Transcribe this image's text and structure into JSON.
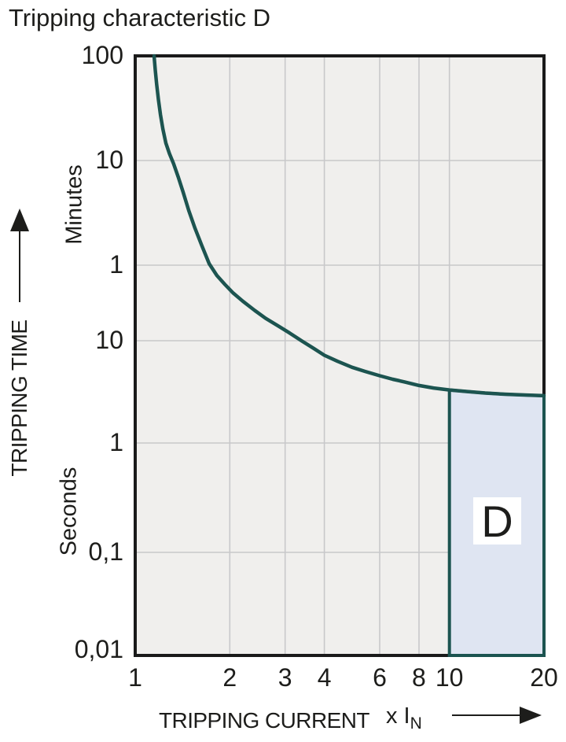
{
  "chart_data": {
    "type": "line",
    "title": "Tripping characteristic D",
    "x_axis": {
      "label": "TRIPPING CURRENT",
      "unit": "x I",
      "unit_sub": "N",
      "scale": "log",
      "range": [
        1,
        20
      ],
      "ticks": [
        1,
        2,
        3,
        4,
        6,
        8,
        10,
        20
      ],
      "tick_labels": [
        "1",
        "2",
        "3",
        "4",
        "6",
        "8",
        "10",
        "20"
      ]
    },
    "y_axis": {
      "label": "TRIPPING TIME",
      "upper_unit": "Minutes",
      "lower_unit": "Seconds",
      "scale": "log",
      "range_seconds": [
        0.01,
        6000
      ],
      "tick_labels": [
        {
          "text": "100",
          "unit": "minutes",
          "seconds": 6000
        },
        {
          "text": "10",
          "unit": "minutes",
          "seconds": 600
        },
        {
          "text": "1",
          "unit": "minutes",
          "seconds": 60
        },
        {
          "text": "10",
          "unit": "seconds",
          "seconds": 10
        },
        {
          "text": "1",
          "unit": "seconds",
          "seconds": 1
        },
        {
          "text": "0,1",
          "unit": "seconds",
          "seconds": 0.1
        },
        {
          "text": "0,01",
          "unit": "seconds",
          "seconds": 0.01
        }
      ]
    },
    "grid": {
      "x_lines_at": [
        2,
        3,
        4,
        6,
        8,
        10
      ],
      "y_lines_at_seconds": [
        600,
        60,
        10,
        1,
        0.1
      ]
    },
    "series": [
      {
        "name": "tripping-characteristic-D-curve",
        "color": "#1c5450",
        "points": [
          [
            1.148,
            6000
          ],
          [
            1.158,
            4400
          ],
          [
            1.17,
            3200
          ],
          [
            1.185,
            2300
          ],
          [
            1.203,
            1650
          ],
          [
            1.225,
            1200
          ],
          [
            1.252,
            880
          ],
          [
            1.285,
            700
          ],
          [
            1.325,
            560
          ],
          [
            1.37,
            420
          ],
          [
            1.42,
            300
          ],
          [
            1.48,
            200
          ],
          [
            1.55,
            135
          ],
          [
            1.63,
            92
          ],
          [
            1.72,
            62
          ],
          [
            1.82,
            47
          ],
          [
            1.93,
            38
          ],
          [
            2.05,
            31
          ],
          [
            2.2,
            25.5
          ],
          [
            2.4,
            20.5
          ],
          [
            2.6,
            17
          ],
          [
            2.85,
            14.2
          ],
          [
            3.1,
            12
          ],
          [
            3.4,
            9.9
          ],
          [
            3.7,
            8.4
          ],
          [
            4.0,
            7.2
          ],
          [
            4.4,
            6.3
          ],
          [
            4.9,
            5.5
          ],
          [
            5.4,
            5.0
          ],
          [
            6.0,
            4.55
          ],
          [
            6.6,
            4.2
          ],
          [
            7.2,
            3.95
          ],
          [
            8.0,
            3.65
          ],
          [
            8.9,
            3.45
          ],
          [
            10.0,
            3.3
          ],
          [
            11.5,
            3.18
          ],
          [
            13.0,
            3.08
          ],
          [
            15.0,
            3.0
          ],
          [
            17.0,
            2.95
          ],
          [
            20.0,
            2.9
          ]
        ]
      }
    ],
    "region": {
      "label": "D",
      "x_from": 10,
      "x_to": 20,
      "bottom_seconds": 0.01,
      "top_follows": "curve (≈3.3 s at 10×In to ≈2.9 s at 20×In)",
      "fill": "#dfe5f2",
      "border": "#1c5450"
    },
    "colors": {
      "plot_background": "#f0efed",
      "grid": "#c8c8ca",
      "border": "#1a1a1a",
      "text": "#1d1d1b"
    },
    "legend": "none"
  }
}
